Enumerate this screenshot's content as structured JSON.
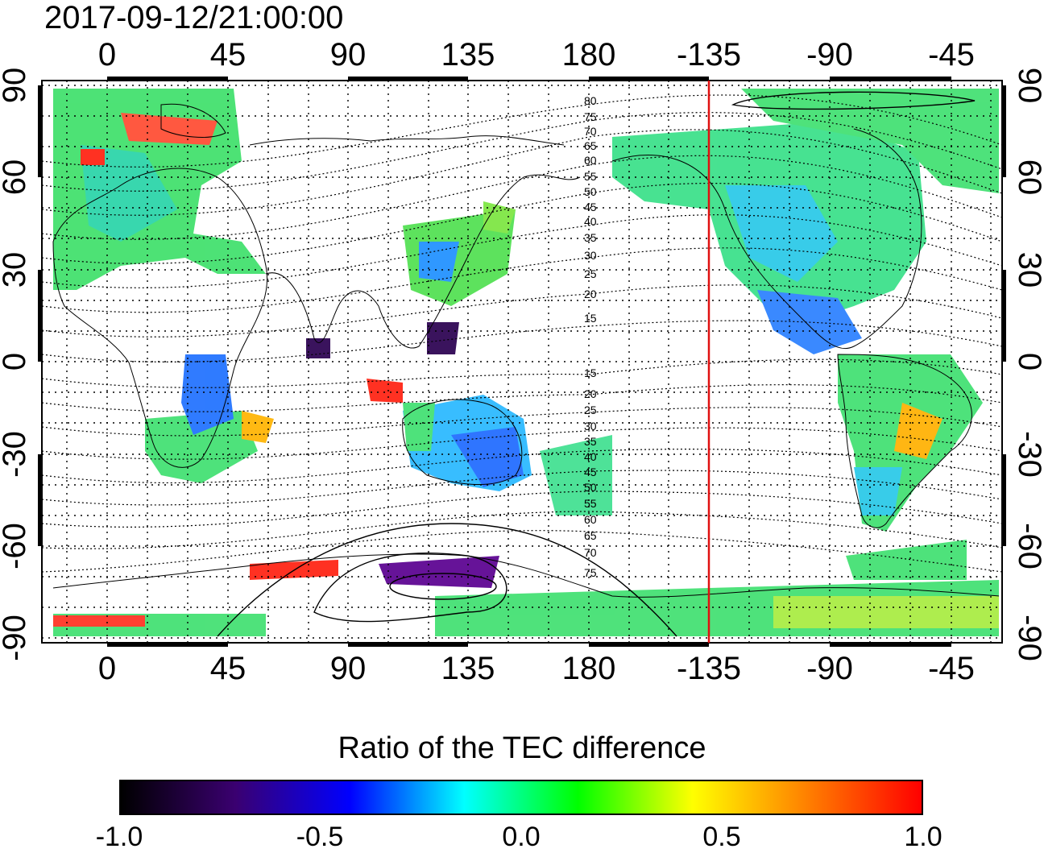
{
  "title": "2017-09-12/21:00:00",
  "map": {
    "top_lon_labels": [
      "0",
      "45",
      "90",
      "135",
      "180",
      "-135",
      "-90",
      "-45"
    ],
    "bottom_lon_labels": [
      "0",
      "45",
      "90",
      "135",
      "180",
      "-135",
      "-90",
      "-45"
    ],
    "left_lat_labels": [
      "90",
      "60",
      "30",
      "0",
      "-30",
      "-60",
      "-90"
    ],
    "right_lat_labels": [
      "90",
      "60",
      "30",
      "0",
      "-30",
      "-60",
      "-90"
    ],
    "contour_labels": [
      "80",
      "75",
      "70",
      "65",
      "60",
      "55",
      "50",
      "45",
      "40",
      "35",
      "30",
      "25",
      "20",
      "15",
      "15",
      "20",
      "25",
      "30",
      "35",
      "40",
      "45",
      "50",
      "55",
      "60",
      "65",
      "70",
      "75"
    ],
    "marked_longitude": -135,
    "marked_longitude_color": "#e01010"
  },
  "colorbar": {
    "title": "Ratio of the TEC difference",
    "ticks": [
      "-1.0",
      "-0.5",
      "0.0",
      "0.5",
      "1.0"
    ],
    "colors": [
      "#000000",
      "#3a0070",
      "#0000ff",
      "#00ffff",
      "#00ff00",
      "#ffff00",
      "#ff8000",
      "#ff0000"
    ]
  }
}
